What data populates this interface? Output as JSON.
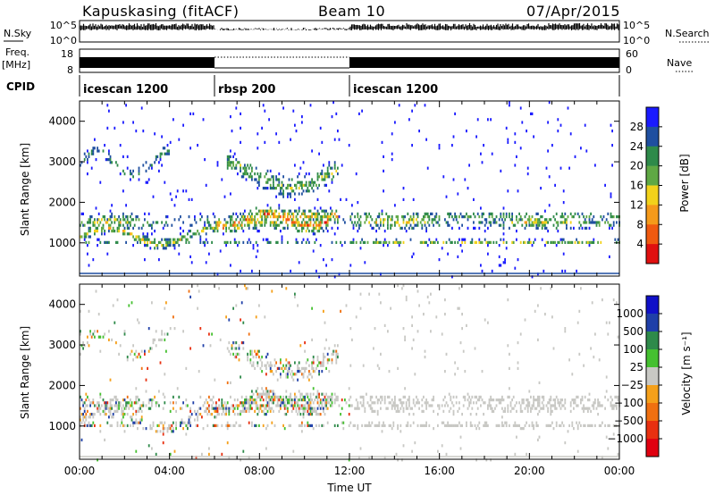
{
  "header": {
    "station": "Kapuskasing (fitACF)",
    "beam": "Beam 10",
    "date": "07/Apr/2015"
  },
  "panels": {
    "nsky": {
      "label": "N.Sky",
      "ticks": [
        "10^5",
        "10^0"
      ],
      "right_ticks": [
        "10^5",
        "10^0"
      ],
      "right_label": "N.Search"
    },
    "freq": {
      "label_top": "Freq.",
      "label_unit": "[MHz]",
      "ticks": [
        "18",
        "8"
      ],
      "right_ticks": [
        "60",
        "0"
      ],
      "right_label": "Nave"
    },
    "cpid": {
      "label": "CPID",
      "segments": [
        {
          "name": "icescan 1200",
          "start_h": 0,
          "end_h": 6
        },
        {
          "name": "rbsp 200",
          "start_h": 6,
          "end_h": 12
        },
        {
          "name": "icescan 1200",
          "start_h": 12,
          "end_h": 24
        }
      ]
    }
  },
  "chart_data": [
    {
      "type": "heatmap",
      "title": "",
      "xlabel": "",
      "ylabel": "Slant Range [km]",
      "xlim": [
        0,
        24
      ],
      "ylim": [
        180,
        4500
      ],
      "y_ticks": [
        1000,
        2000,
        3000,
        4000
      ],
      "colorbar": {
        "label": "Power [dB]",
        "ticks": [
          "4",
          "8",
          "12",
          "16",
          "20",
          "24",
          "28"
        ],
        "colors": [
          "#1a1aff",
          "#1f4fa0",
          "#2e8a4a",
          "#5fa844",
          "#f2d21a",
          "#f59a1a",
          "#f05a10",
          "#e01010"
        ]
      }
    },
    {
      "type": "heatmap",
      "title": "",
      "xlabel": "Time UT",
      "ylabel": "Slant Range [km]",
      "xlim": [
        0,
        24
      ],
      "ylim": [
        180,
        4500
      ],
      "y_ticks": [
        1000,
        2000,
        3000,
        4000
      ],
      "x_ticks": [
        "00:00",
        "04:00",
        "08:00",
        "12:00",
        "16:00",
        "20:00",
        "00:00"
      ],
      "colorbar": {
        "label": "Velocity [m s⁻¹]",
        "ticks": [
          "1000",
          "500",
          "100",
          "25",
          "−25",
          "−100",
          "−500",
          "−1000"
        ],
        "colors": [
          "#1010c8",
          "#1f3fa8",
          "#2e8a4a",
          "#45c030",
          "#c8c8c4",
          "#f5a01a",
          "#f07010",
          "#e83010",
          "#e00010"
        ]
      }
    }
  ]
}
